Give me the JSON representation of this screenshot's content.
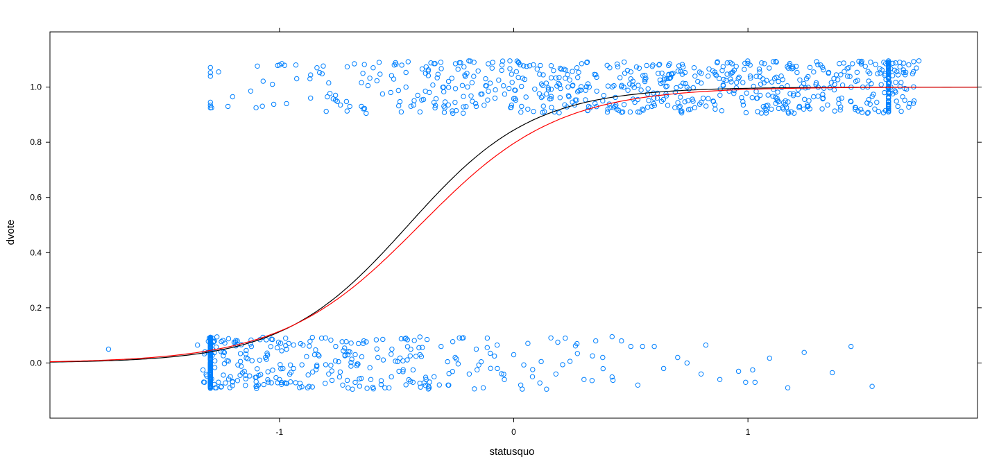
{
  "chart_data": {
    "type": "scatter",
    "title": "",
    "xlabel": "statusquo",
    "ylabel": "dvote",
    "xlim": [
      -1.98,
      1.98
    ],
    "ylim": [
      -0.2,
      1.2
    ],
    "x_ticks": [
      -1,
      0,
      1
    ],
    "x_tick_labels": [
      "-1",
      "0",
      "1"
    ],
    "y_ticks": [
      0.0,
      0.2,
      0.4,
      0.6,
      0.8,
      1.0
    ],
    "y_tick_labels": [
      "0.0",
      "0.2",
      "0.4",
      "0.6",
      "0.8",
      "1.0"
    ],
    "grid": false,
    "legend": "none",
    "point_color": "#0080ff",
    "points": [
      [
        -1.73,
        0.05
      ],
      [
        -1.35,
        0.065
      ],
      [
        -1.32,
        -0.07
      ],
      [
        -1.3,
        0.09
      ],
      [
        -1.29,
        0.925
      ],
      [
        -1.26,
        1.055
      ],
      [
        -1.22,
        0.93
      ],
      [
        -1.2,
        0.965
      ],
      [
        -1.1,
        0.925
      ],
      [
        -1.03,
        1.01
      ],
      [
        -0.99,
        1.085
      ],
      [
        -0.97,
        0.94
      ],
      [
        -0.93,
        1.08
      ],
      [
        -0.87,
        1.03
      ],
      [
        -0.84,
        1.07
      ],
      [
        -0.79,
        1.015
      ],
      [
        -0.74,
        0.935
      ],
      [
        -0.7,
        0.93
      ],
      [
        -0.65,
        0.93
      ],
      [
        -0.63,
        0.905
      ],
      [
        -0.6,
        1.07
      ],
      [
        -0.56,
        0.975
      ],
      [
        -0.51,
        1.08
      ],
      [
        -0.48,
        0.91
      ],
      [
        -0.46,
        1.0
      ],
      [
        -0.4,
        0.91
      ],
      [
        -0.34,
        1.085
      ],
      [
        -0.3,
        1.0
      ],
      [
        -0.26,
        0.905
      ],
      [
        -0.2,
        1.05
      ],
      [
        -0.16,
        0.93
      ],
      [
        -0.12,
        1.03
      ],
      [
        -0.08,
        0.96
      ],
      [
        -0.05,
        1.08
      ],
      [
        -0.02,
        0.995
      ],
      [
        0.02,
        1.09
      ],
      [
        0.06,
        0.92
      ],
      [
        0.1,
        1.065
      ],
      [
        0.14,
        0.975
      ],
      [
        0.17,
        1.06
      ],
      [
        0.2,
        0.995
      ],
      [
        0.23,
        1.045
      ],
      [
        0.26,
        0.935
      ],
      [
        0.29,
        1.085
      ],
      [
        0.32,
        0.93
      ],
      [
        0.35,
        1.045
      ],
      [
        0.38,
        0.95
      ],
      [
        0.41,
        1.07
      ],
      [
        0.44,
        0.92
      ],
      [
        0.47,
        1.0
      ],
      [
        0.5,
        1.055
      ],
      [
        0.53,
        0.955
      ],
      [
        0.56,
        1.02
      ],
      [
        0.59,
        0.93
      ],
      [
        0.62,
        1.08
      ],
      [
        0.65,
        0.975
      ],
      [
        0.68,
        1.05
      ],
      [
        0.71,
        0.93
      ],
      [
        0.74,
        1.0
      ],
      [
        0.77,
        1.07
      ],
      [
        0.8,
        0.945
      ],
      [
        0.83,
        1.04
      ],
      [
        0.86,
        0.92
      ],
      [
        0.89,
        1.06
      ],
      [
        0.92,
        0.985
      ],
      [
        0.95,
        1.075
      ],
      [
        0.98,
        0.935
      ],
      [
        1.01,
        1.04
      ],
      [
        1.04,
        0.96
      ],
      [
        1.07,
        1.085
      ],
      [
        1.1,
        0.92
      ],
      [
        1.13,
        1.02
      ],
      [
        1.16,
        0.95
      ],
      [
        1.19,
        1.075
      ],
      [
        1.22,
        0.93
      ],
      [
        1.25,
        1.03
      ],
      [
        1.28,
        0.965
      ],
      [
        1.31,
        1.08
      ],
      [
        1.34,
        0.935
      ],
      [
        1.37,
        1.01
      ],
      [
        1.4,
        0.96
      ],
      [
        1.43,
        1.07
      ],
      [
        1.46,
        0.925
      ],
      [
        1.49,
        1.0
      ],
      [
        1.52,
        1.05
      ],
      [
        1.55,
        0.945
      ],
      [
        1.58,
        1.09
      ],
      [
        1.61,
        1.0
      ],
      [
        1.64,
        0.93
      ],
      [
        1.67,
        0.995
      ],
      [
        1.69,
        0.94
      ],
      [
        1.73,
        1.095
      ],
      [
        -1.27,
        -0.09
      ],
      [
        -1.24,
        0.04
      ],
      [
        -1.21,
        -0.05
      ],
      [
        -1.18,
        0.08
      ],
      [
        -1.15,
        -0.03
      ],
      [
        -1.12,
        0.06
      ],
      [
        -1.09,
        -0.08
      ],
      [
        -1.06,
        0.02
      ],
      [
        -1.03,
        0.085
      ],
      [
        -1.0,
        -0.06
      ],
      [
        -0.97,
        0.05
      ],
      [
        -0.94,
        -0.02
      ],
      [
        -0.91,
        0.07
      ],
      [
        -0.88,
        -0.09
      ],
      [
        -0.85,
        0.03
      ],
      [
        -0.82,
        0.09
      ],
      [
        -0.79,
        -0.04
      ],
      [
        -0.76,
        0.06
      ],
      [
        -0.73,
        -0.08
      ],
      [
        -0.7,
        0.04
      ],
      [
        -0.67,
        -0.01
      ],
      [
        -0.64,
        0.08
      ],
      [
        -0.61,
        -0.06
      ],
      [
        -0.58,
        0.02
      ],
      [
        -0.55,
        -0.09
      ],
      [
        -0.52,
        0.05
      ],
      [
        -0.49,
        -0.03
      ],
      [
        -0.46,
        0.09
      ],
      [
        -0.43,
        -0.07
      ],
      [
        -0.4,
        0.03
      ],
      [
        -0.37,
        0.085
      ],
      [
        -0.34,
        -0.05
      ],
      [
        -0.31,
        0.06
      ],
      [
        -0.28,
        -0.08
      ],
      [
        -0.25,
        0.02
      ],
      [
        -0.22,
        0.09
      ],
      [
        -0.19,
        -0.04
      ],
      [
        -0.16,
        0.05
      ],
      [
        -0.13,
        -0.09
      ],
      [
        -0.1,
        0.035
      ],
      [
        -0.07,
        -0.02
      ],
      [
        -0.04,
        -0.06
      ],
      [
        0.0,
        0.03
      ],
      [
        0.03,
        -0.08
      ],
      [
        0.08,
        -0.05
      ],
      [
        0.14,
        -0.095
      ],
      [
        0.18,
        -0.04
      ],
      [
        0.22,
        0.09
      ],
      [
        0.27,
        0.07
      ],
      [
        0.3,
        -0.06
      ],
      [
        0.35,
        0.08
      ],
      [
        0.38,
        0.02
      ],
      [
        0.42,
        0.095
      ],
      [
        0.46,
        0.08
      ],
      [
        0.5,
        0.06
      ],
      [
        0.53,
        -0.08
      ],
      [
        0.55,
        0.06
      ],
      [
        0.6,
        0.06
      ],
      [
        0.64,
        -0.02
      ],
      [
        0.7,
        0.02
      ],
      [
        0.74,
        0.0
      ],
      [
        0.8,
        -0.04
      ],
      [
        0.82,
        0.065
      ],
      [
        0.88,
        -0.06
      ],
      [
        0.96,
        -0.03
      ],
      [
        0.99,
        -0.07
      ],
      [
        1.02,
        -0.025
      ],
      [
        1.03,
        -0.07
      ],
      [
        1.17,
        -0.09
      ],
      [
        1.24,
        0.038
      ],
      [
        1.36,
        -0.035
      ],
      [
        1.44,
        0.06
      ],
      [
        1.53,
        -0.085
      ]
    ],
    "series": [
      {
        "type": "line",
        "color": "#000000",
        "a": 0.45,
        "b": 3.75
      },
      {
        "type": "line",
        "color": "#ff0000",
        "a": 0.4,
        "b": 3.4
      }
    ]
  }
}
